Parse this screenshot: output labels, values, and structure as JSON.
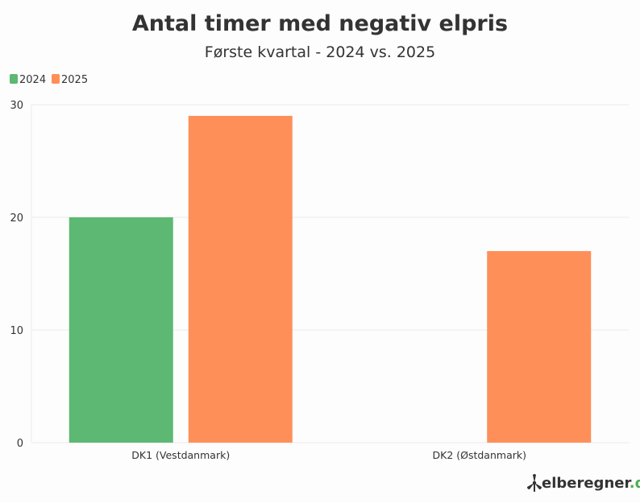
{
  "colors": {
    "series_2024": "#5cb872",
    "series_2025": "#ff8f59",
    "grid": "#ececec",
    "text": "#333333",
    "brand_accent": "#4caf50"
  },
  "chart_data": {
    "type": "bar",
    "title": "Antal timer med negativ elpris",
    "subtitle": "Første kvartal - 2024 vs. 2025",
    "categories": [
      "DK1 (Vestdanmark)",
      "DK2 (Østdanmark)"
    ],
    "series": [
      {
        "name": "2024",
        "values": [
          20,
          0
        ]
      },
      {
        "name": "2025",
        "values": [
          29,
          17
        ]
      }
    ],
    "ylim": [
      0,
      30
    ],
    "yticks": [
      0,
      10,
      20,
      30
    ],
    "grid": true,
    "legend_position": "top-left"
  },
  "brand": {
    "name": "elberegner",
    "suffix": ".dk",
    "icon": "wind-turbine-icon"
  }
}
